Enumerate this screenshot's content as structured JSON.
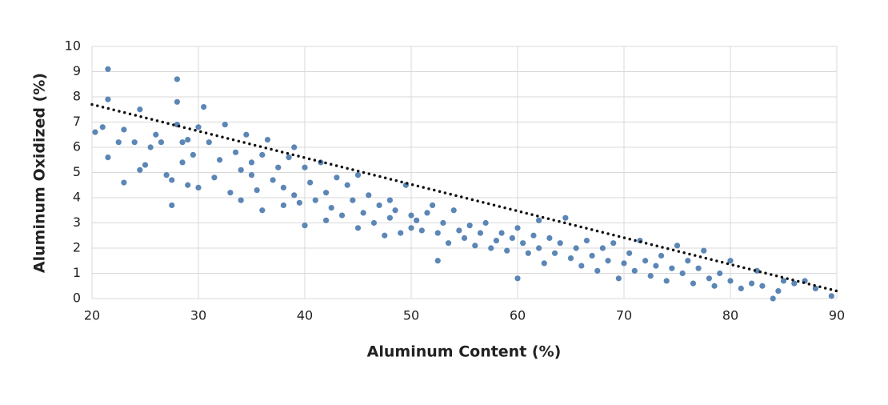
{
  "chart_data": {
    "type": "scatter",
    "xlabel": "Aluminum Content (%)",
    "ylabel": "Aluminum Oxidized (%)",
    "xlim": [
      20,
      90
    ],
    "ylim": [
      0,
      10
    ],
    "xticks": [
      20,
      30,
      40,
      50,
      60,
      70,
      80,
      90
    ],
    "yticks": [
      0,
      1,
      2,
      3,
      4,
      5,
      6,
      7,
      8,
      9,
      10
    ],
    "grid": true,
    "series": [
      {
        "color": "#5b86b6",
        "x": [
          20.3,
          21,
          21.5,
          21.5,
          21.5,
          22.5,
          23,
          23,
          24,
          24.5,
          24.5,
          25,
          25.5,
          26,
          26.5,
          27,
          27.5,
          27.5,
          28,
          28,
          28,
          28.5,
          28.5,
          29,
          29,
          29.5,
          30,
          30,
          30.5,
          31,
          31.5,
          32,
          32.5,
          33,
          33.5,
          34,
          34,
          34.5,
          35,
          35,
          35.5,
          36,
          36,
          36.5,
          37,
          37.5,
          38,
          38,
          38.5,
          39,
          39,
          39.5,
          40,
          40,
          40.5,
          41,
          41.5,
          42,
          42,
          42.5,
          43,
          43.5,
          44,
          44.5,
          45,
          45,
          45.5,
          46,
          46.5,
          47,
          47.5,
          48,
          48,
          48.5,
          49,
          49.5,
          50,
          50,
          50.5,
          51,
          51.5,
          52,
          52.5,
          52.5,
          53,
          53.5,
          54,
          54.5,
          55,
          55.5,
          56,
          56.5,
          57,
          57.5,
          58,
          58.5,
          59,
          59.5,
          60,
          60,
          60.5,
          61,
          61.5,
          62,
          62,
          62.5,
          63,
          63.5,
          64,
          64.5,
          65,
          65.5,
          66,
          66.5,
          67,
          67.5,
          68,
          68.5,
          69,
          69.5,
          70,
          70.5,
          71,
          71.5,
          72,
          72.5,
          73,
          73.5,
          74,
          74.5,
          75,
          75.5,
          76,
          76.5,
          77,
          77.5,
          78,
          78.5,
          79,
          80,
          80,
          81,
          82,
          82.5,
          83,
          84,
          84.5,
          85,
          86,
          87,
          88,
          89.5
        ],
        "values": [
          6.6,
          6.8,
          9.1,
          7.9,
          5.6,
          6.2,
          4.6,
          6.7,
          6.2,
          7.5,
          5.1,
          5.3,
          6,
          6.5,
          6.2,
          4.9,
          3.7,
          4.7,
          8.7,
          7.8,
          6.9,
          6.2,
          5.4,
          6.3,
          4.5,
          5.7,
          4.4,
          6.8,
          7.6,
          6.2,
          4.8,
          5.5,
          6.9,
          4.2,
          5.8,
          5.1,
          3.9,
          6.5,
          4.9,
          5.4,
          4.3,
          3.5,
          5.7,
          6.3,
          4.7,
          5.2,
          3.7,
          4.4,
          5.6,
          6,
          4.1,
          3.8,
          2.9,
          5.2,
          4.6,
          3.9,
          5.4,
          4.2,
          3.1,
          3.6,
          4.8,
          3.3,
          4.5,
          3.9,
          2.8,
          4.9,
          3.4,
          4.1,
          3,
          3.7,
          2.5,
          3.9,
          3.2,
          3.5,
          2.6,
          4.5,
          3.3,
          2.8,
          3.1,
          2.7,
          3.4,
          3.7,
          1.5,
          2.6,
          3,
          2.2,
          3.5,
          2.7,
          2.4,
          2.9,
          2.1,
          2.6,
          3,
          2,
          2.3,
          2.6,
          1.9,
          2.4,
          0.8,
          2.8,
          2.2,
          1.8,
          2.5,
          3.1,
          2,
          1.4,
          2.4,
          1.8,
          2.2,
          3.2,
          1.6,
          2,
          1.3,
          2.3,
          1.7,
          1.1,
          2,
          1.5,
          2.2,
          0.8,
          1.4,
          1.8,
          1.1,
          2.3,
          1.5,
          0.9,
          1.3,
          1.7,
          0.7,
          1.2,
          2.1,
          1,
          1.5,
          0.6,
          1.2,
          1.9,
          0.8,
          0.5,
          1,
          1.5,
          0.7,
          0.4,
          0.6,
          1.1,
          0.5,
          0,
          0.3,
          0.7,
          0.6,
          0.7,
          0.4,
          0.1
        ]
      }
    ],
    "trend": {
      "color": "#111111",
      "x": [
        20,
        90
      ],
      "values": [
        7.7,
        0.3
      ]
    }
  }
}
